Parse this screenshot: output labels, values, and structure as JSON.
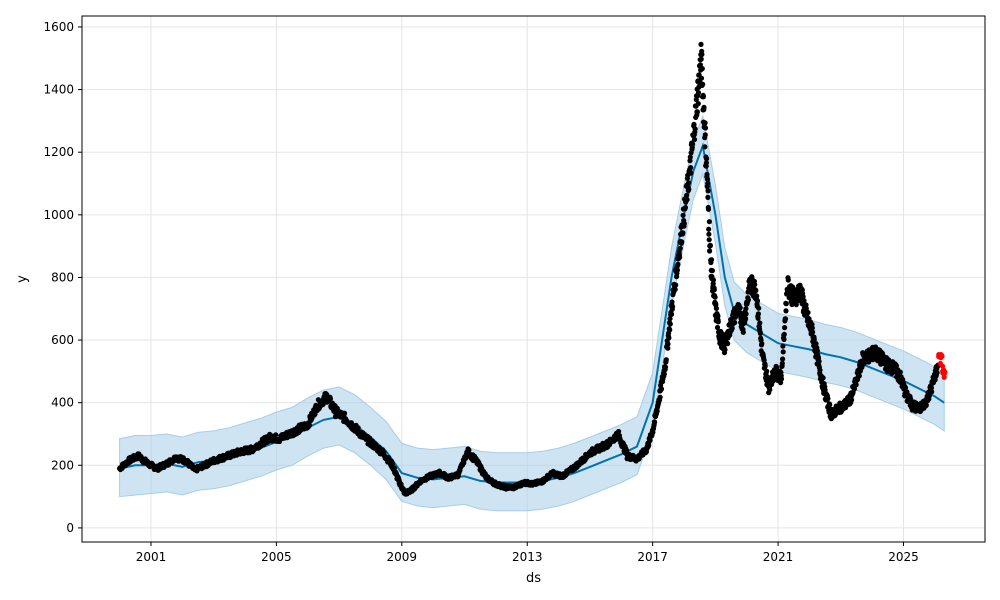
{
  "chart_data": {
    "type": "line",
    "title": "",
    "xlabel": "ds",
    "ylabel": "y",
    "xlim": [
      1998.8,
      2027.6
    ],
    "ylim": [
      -45,
      1635
    ],
    "x_ticks": [
      "2001",
      "2005",
      "2009",
      "2013",
      "2017",
      "2021",
      "2025"
    ],
    "y_ticks": [
      0,
      200,
      400,
      600,
      800,
      1000,
      1200,
      1400,
      1600
    ],
    "grid": true,
    "legend": "none",
    "colors": {
      "observed": "#000000",
      "forecast_line": "#0072B2",
      "uncertainty_band": "#a6cde8",
      "highlight": "#ff0000",
      "grid": "#e5e5e5"
    },
    "forecast": {
      "x": [
        2000.0,
        2000.5,
        2001.0,
        2001.5,
        2002.0,
        2002.5,
        2003.0,
        2003.5,
        2004.0,
        2004.5,
        2005.0,
        2005.5,
        2006.0,
        2006.5,
        2007.0,
        2007.5,
        2008.0,
        2008.5,
        2009.0,
        2009.5,
        2010.0,
        2010.5,
        2011.0,
        2011.5,
        2012.0,
        2012.5,
        2013.0,
        2013.5,
        2014.0,
        2014.5,
        2015.0,
        2015.5,
        2016.0,
        2016.5,
        2017.0,
        2017.3,
        2017.6,
        2018.0,
        2018.3,
        2018.6,
        2019.0,
        2019.3,
        2019.6,
        2020.0,
        2020.5,
        2021.0,
        2021.5,
        2022.0,
        2022.5,
        2023.0,
        2023.5,
        2024.0,
        2024.5,
        2025.0,
        2025.5,
        2026.0,
        2026.3
      ],
      "yhat": [
        190,
        200,
        200,
        205,
        195,
        210,
        215,
        225,
        240,
        255,
        275,
        290,
        320,
        345,
        355,
        330,
        290,
        245,
        175,
        160,
        155,
        160,
        165,
        150,
        145,
        145,
        145,
        150,
        160,
        175,
        195,
        215,
        235,
        260,
        400,
        600,
        800,
        1000,
        1140,
        1220,
        1000,
        800,
        690,
        650,
        620,
        590,
        580,
        570,
        555,
        545,
        530,
        510,
        490,
        470,
        445,
        420,
        400
      ],
      "lower": [
        100,
        105,
        110,
        115,
        105,
        120,
        125,
        135,
        150,
        165,
        185,
        200,
        230,
        255,
        265,
        240,
        200,
        155,
        85,
        70,
        65,
        70,
        75,
        60,
        55,
        55,
        55,
        60,
        70,
        85,
        105,
        125,
        145,
        170,
        310,
        510,
        710,
        910,
        1050,
        1130,
        910,
        710,
        600,
        560,
        530,
        500,
        490,
        480,
        465,
        455,
        440,
        420,
        400,
        380,
        355,
        330,
        310
      ],
      "upper": [
        285,
        295,
        295,
        300,
        290,
        305,
        310,
        320,
        335,
        350,
        370,
        385,
        415,
        440,
        450,
        425,
        385,
        340,
        270,
        255,
        250,
        255,
        260,
        245,
        240,
        240,
        240,
        245,
        255,
        270,
        290,
        310,
        330,
        355,
        495,
        695,
        895,
        1095,
        1235,
        1315,
        1095,
        895,
        785,
        745,
        715,
        685,
        675,
        665,
        650,
        640,
        625,
        605,
        585,
        565,
        540,
        515,
        495
      ]
    },
    "observed": {
      "x": [
        2000.0,
        2000.3,
        2000.6,
        2000.9,
        2001.2,
        2001.5,
        2001.8,
        2002.1,
        2002.4,
        2002.7,
        2003.0,
        2003.3,
        2003.6,
        2003.9,
        2004.2,
        2004.5,
        2004.8,
        2005.1,
        2005.4,
        2005.7,
        2006.0,
        2006.3,
        2006.6,
        2006.9,
        2007.2,
        2007.5,
        2007.8,
        2008.1,
        2008.4,
        2008.7,
        2008.9,
        2009.1,
        2009.3,
        2009.6,
        2009.9,
        2010.2,
        2010.5,
        2010.8,
        2011.1,
        2011.4,
        2011.7,
        2012.0,
        2012.3,
        2012.6,
        2012.9,
        2013.2,
        2013.5,
        2013.8,
        2014.1,
        2014.4,
        2014.7,
        2015.0,
        2015.3,
        2015.6,
        2015.9,
        2016.2,
        2016.5,
        2016.8,
        2017.0,
        2017.2,
        2017.4,
        2017.6,
        2017.8,
        2018.0,
        2018.2,
        2018.4,
        2018.55,
        2018.7,
        2018.85,
        2019.0,
        2019.15,
        2019.3,
        2019.5,
        2019.7,
        2019.9,
        2020.1,
        2020.3,
        2020.5,
        2020.7,
        2020.9,
        2021.1,
        2021.3,
        2021.5,
        2021.7,
        2021.9,
        2022.1,
        2022.3,
        2022.5,
        2022.7,
        2022.9,
        2023.1,
        2023.3,
        2023.5,
        2023.7,
        2023.9,
        2024.1,
        2024.3,
        2024.5,
        2024.7,
        2024.9,
        2025.1,
        2025.3,
        2025.5,
        2025.7,
        2025.9,
        2026.1
      ],
      "y": [
        190,
        215,
        230,
        205,
        190,
        205,
        225,
        215,
        185,
        200,
        215,
        225,
        235,
        245,
        250,
        270,
        290,
        285,
        300,
        315,
        330,
        390,
        420,
        370,
        350,
        320,
        290,
        265,
        240,
        200,
        150,
        110,
        120,
        150,
        165,
        175,
        160,
        170,
        245,
        210,
        160,
        140,
        130,
        130,
        145,
        140,
        150,
        175,
        165,
        185,
        210,
        240,
        255,
        270,
        300,
        230,
        220,
        250,
        310,
        410,
        520,
        700,
        850,
        1000,
        1150,
        1350,
        1500,
        1200,
        850,
        700,
        610,
        580,
        650,
        700,
        650,
        780,
        760,
        550,
        450,
        500,
        480,
        780,
        730,
        760,
        680,
        620,
        520,
        430,
        360,
        380,
        390,
        410,
        470,
        540,
        550,
        560,
        540,
        520,
        510,
        480,
        420,
        390,
        380,
        400,
        450,
        520
      ],
      "highlight": {
        "x": [
          2026.15,
          2026.2,
          2026.25,
          2026.3
        ],
        "y": [
          560,
          540,
          510,
          490
        ]
      }
    }
  }
}
